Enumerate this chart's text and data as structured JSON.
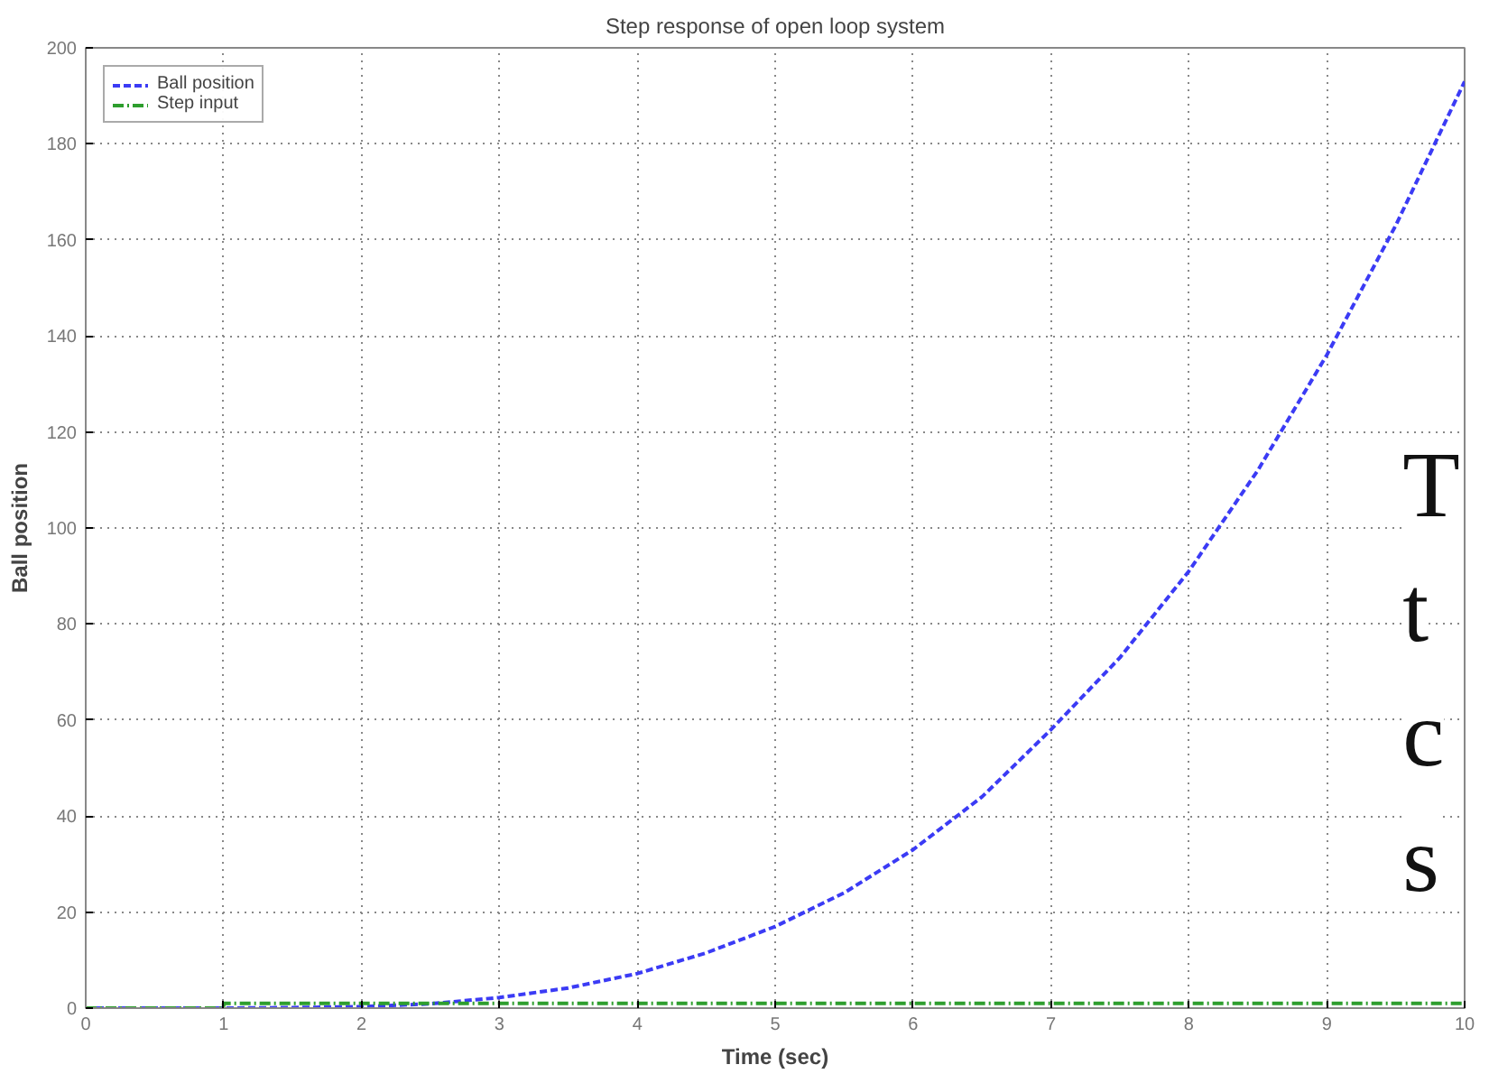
{
  "chart_data": {
    "type": "line",
    "title": "Step response of open loop system",
    "xlabel": "Time (sec)",
    "ylabel": "Ball position",
    "x": [
      0,
      1,
      1.5,
      2,
      2.5,
      3,
      3.5,
      4,
      4.5,
      5,
      5.5,
      6,
      6.5,
      7,
      7.5,
      8,
      8.5,
      9,
      9.5,
      10
    ],
    "series": [
      {
        "name": "Ball position",
        "color": "#3b3bf5",
        "line_style": "dashed",
        "values": [
          0,
          0,
          0.1,
          0.3,
          0.9,
          2.2,
          4.2,
          7.2,
          11.5,
          17,
          24,
          33,
          44,
          58,
          73,
          91,
          112,
          136,
          163,
          193
        ]
      },
      {
        "name": "Step input",
        "type": "step",
        "color": "#2e9e2e",
        "line_style": "dashdot",
        "values": [
          0,
          1,
          1,
          1,
          1,
          1,
          1,
          1,
          1,
          1,
          1,
          1,
          1,
          1,
          1,
          1,
          1,
          1,
          1,
          1
        ]
      }
    ],
    "xlim": [
      0,
      10
    ],
    "xticks": [
      0,
      1,
      2,
      3,
      4,
      5,
      6,
      7,
      8,
      9,
      10
    ],
    "ylim": [
      0,
      200
    ],
    "yticks": [
      0,
      20,
      40,
      60,
      80,
      100,
      120,
      140,
      160,
      180,
      200
    ],
    "grid": true,
    "legend": "top left",
    "annotations": [
      "T",
      "t",
      "c",
      "s"
    ]
  }
}
